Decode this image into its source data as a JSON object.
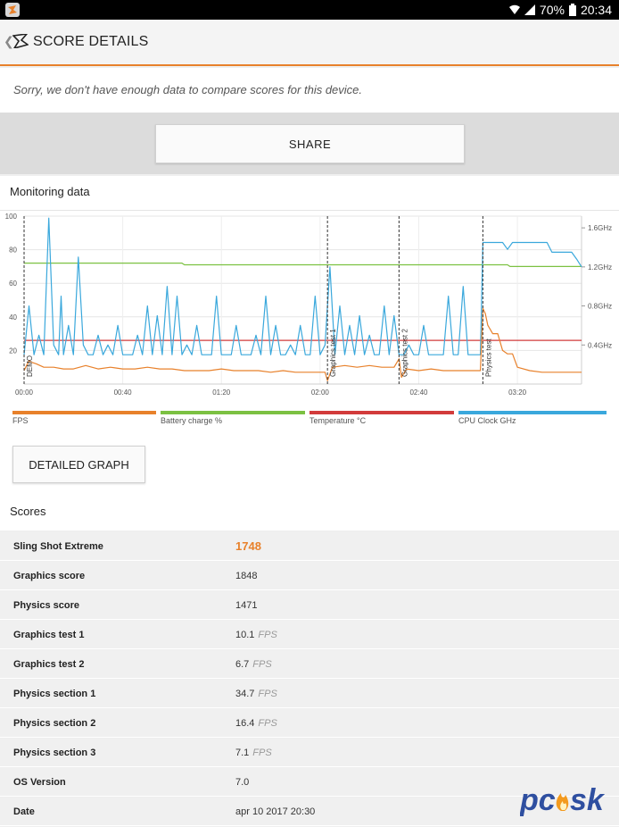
{
  "status_bar": {
    "battery": "70%",
    "time": "20:34"
  },
  "app_bar": {
    "title": "SCORE DETAILS"
  },
  "notice": "Sorry, we don't have enough data to compare scores for this device.",
  "share_label": "SHARE",
  "monitoring": {
    "title": "Monitoring data",
    "detailed_graph_label": "DETAILED GRAPH",
    "legend": [
      {
        "label": "FPS",
        "color": "#e8812b"
      },
      {
        "label": "Battery charge %",
        "color": "#7cc142"
      },
      {
        "label": "Temperature °C",
        "color": "#d23b3b"
      },
      {
        "label": "CPU Clock GHz",
        "color": "#3aa8dc"
      }
    ]
  },
  "chart_data": {
    "type": "line",
    "x_unit": "mm:ss",
    "x_ticks": [
      "00:00",
      "00:40",
      "01:20",
      "02:00",
      "02:40",
      "03:20"
    ],
    "y_left_ticks": [
      "100",
      "80",
      "60",
      "40",
      "20"
    ],
    "y_right_ticks": [
      "1.6GHz",
      "1.2GHz",
      "0.8GHz",
      "0.4GHz"
    ],
    "ylim_left": [
      0,
      100
    ],
    "ylim_right_ghz": [
      0,
      1.72
    ],
    "xlim_seconds": [
      0,
      226
    ],
    "markers": [
      {
        "label": "DEMO",
        "t": 0
      },
      {
        "label": "Graphics test 1",
        "t": 123
      },
      {
        "label": "Graphics test 2",
        "t": 152
      },
      {
        "label": "Physics test",
        "t": 186
      }
    ],
    "series": [
      {
        "name": "Battery charge %",
        "axis": "left",
        "x": [
          0,
          64,
          65,
          186,
          196,
          197,
          226
        ],
        "y": [
          72,
          72,
          71,
          71,
          71,
          70,
          70
        ]
      },
      {
        "name": "Temperature °C",
        "axis": "left",
        "x": [
          0,
          226
        ],
        "y": [
          26,
          26
        ]
      },
      {
        "name": "FPS",
        "axis": "left",
        "x": [
          0,
          1,
          2,
          3,
          5,
          8,
          12,
          16,
          20,
          25,
          30,
          35,
          40,
          45,
          50,
          55,
          60,
          65,
          70,
          75,
          80,
          85,
          90,
          95,
          100,
          105,
          110,
          115,
          120,
          122,
          123,
          125,
          130,
          135,
          140,
          145,
          150,
          152,
          153,
          155,
          160,
          165,
          170,
          175,
          180,
          185,
          186,
          187,
          188,
          190,
          192,
          194,
          196,
          198,
          200,
          205,
          210,
          215,
          220,
          226
        ],
        "y": [
          8,
          11,
          14,
          13,
          12,
          10,
          10,
          9,
          9,
          11,
          9,
          10,
          9,
          9,
          10,
          9,
          9,
          8,
          8,
          8,
          9,
          8,
          8,
          8,
          7,
          8,
          7,
          7,
          7,
          7,
          2,
          10,
          11,
          10,
          11,
          10,
          10,
          15,
          4,
          9,
          8,
          9,
          8,
          8,
          8,
          8,
          45,
          42,
          35,
          30,
          30,
          20,
          18,
          18,
          10,
          8,
          7,
          7,
          7,
          7
        ]
      },
      {
        "name": "CPU Clock GHz",
        "axis": "right",
        "x": [
          0,
          2,
          4,
          6,
          8,
          10,
          12,
          14,
          15,
          16,
          18,
          20,
          22,
          24,
          26,
          28,
          30,
          32,
          34,
          36,
          38,
          40,
          42,
          44,
          46,
          48,
          50,
          52,
          54,
          56,
          58,
          60,
          62,
          64,
          66,
          68,
          70,
          72,
          74,
          76,
          78,
          80,
          82,
          84,
          86,
          88,
          90,
          92,
          94,
          96,
          98,
          100,
          102,
          104,
          106,
          108,
          110,
          112,
          114,
          116,
          118,
          120,
          122,
          124,
          126,
          128,
          130,
          132,
          134,
          136,
          138,
          140,
          142,
          144,
          146,
          148,
          150,
          152,
          154,
          156,
          158,
          160,
          162,
          164,
          166,
          168,
          170,
          172,
          174,
          176,
          178,
          180,
          182,
          184,
          185,
          186,
          190,
          194,
          196,
          198,
          200,
          202,
          206,
          210,
          212,
          214,
          216,
          218,
          220,
          222,
          224,
          226
        ],
        "y": [
          0.3,
          0.8,
          0.3,
          0.5,
          0.3,
          1.7,
          0.4,
          0.3,
          0.9,
          0.3,
          0.6,
          0.3,
          1.3,
          0.4,
          0.3,
          0.3,
          0.5,
          0.3,
          0.4,
          0.3,
          0.6,
          0.3,
          0.3,
          0.3,
          0.5,
          0.3,
          0.8,
          0.3,
          0.7,
          0.3,
          1.0,
          0.3,
          0.9,
          0.3,
          0.4,
          0.3,
          0.6,
          0.3,
          0.3,
          0.3,
          0.9,
          0.3,
          0.3,
          0.3,
          0.6,
          0.3,
          0.3,
          0.3,
          0.5,
          0.3,
          0.9,
          0.3,
          0.6,
          0.3,
          0.3,
          0.4,
          0.3,
          0.6,
          0.3,
          0.3,
          0.9,
          0.3,
          0.4,
          1.2,
          0.3,
          0.8,
          0.3,
          0.6,
          0.3,
          0.7,
          0.3,
          0.5,
          0.3,
          0.3,
          0.8,
          0.3,
          0.7,
          0.3,
          0.3,
          0.4,
          0.3,
          0.3,
          0.6,
          0.3,
          0.3,
          0.3,
          0.3,
          0.9,
          0.3,
          0.3,
          1.0,
          0.3,
          0.3,
          0.3,
          0.3,
          1.45,
          1.45,
          1.45,
          1.38,
          1.45,
          1.45,
          1.45,
          1.45,
          1.45,
          1.45,
          1.35,
          1.35,
          1.35,
          1.35,
          1.35,
          1.28,
          1.2
        ]
      }
    ]
  },
  "scores": {
    "title": "Scores",
    "rows": [
      {
        "label": "Sling Shot Extreme",
        "value": "1748",
        "unit": ""
      },
      {
        "label": "Graphics score",
        "value": "1848",
        "unit": ""
      },
      {
        "label": "Physics score",
        "value": "1471",
        "unit": ""
      },
      {
        "label": "Graphics test 1",
        "value": "10.1",
        "unit": "FPS"
      },
      {
        "label": "Graphics test 2",
        "value": "6.7",
        "unit": "FPS"
      },
      {
        "label": "Physics section 1",
        "value": "34.7",
        "unit": "FPS"
      },
      {
        "label": "Physics section 2",
        "value": "16.4",
        "unit": "FPS"
      },
      {
        "label": "Physics section 3",
        "value": "7.1",
        "unit": "FPS"
      },
      {
        "label": "OS Version",
        "value": "7.0",
        "unit": ""
      },
      {
        "label": "Date",
        "value": "apr 10 2017 20:30",
        "unit": ""
      }
    ]
  }
}
